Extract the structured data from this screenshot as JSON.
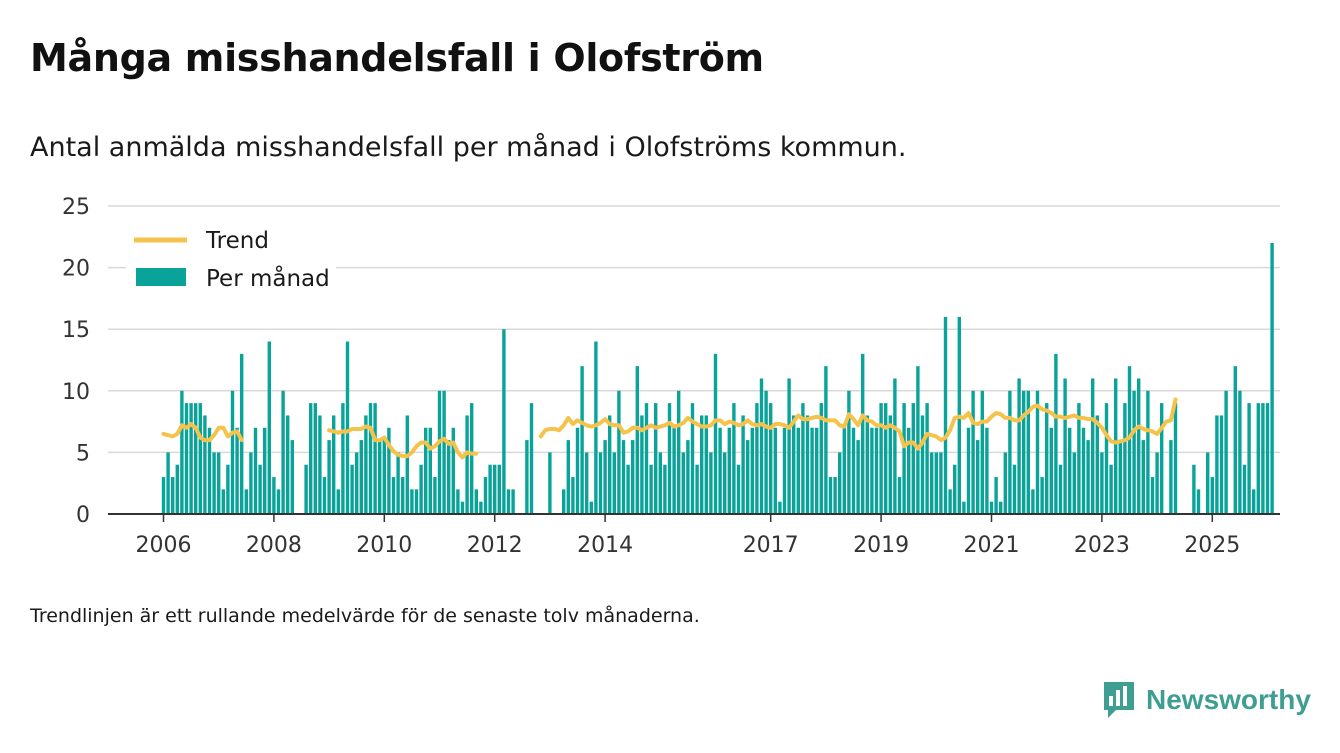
{
  "title": "Många misshandelsfall i Olofström",
  "subtitle": "Antal anmälda misshandelsfall per månad i Olofströms kommun.",
  "footnote": "Trendlinjen är ett rullande medelvärde för de senaste tolv månaderna.",
  "brand": "Newsworthy",
  "colors": {
    "bars": "#0aa39a",
    "trend": "#f5c34b",
    "brand": "#3f9e92"
  },
  "chart_data": {
    "type": "bar",
    "x_start": "2006-01",
    "x_end": "2025-05",
    "ylim": [
      0,
      25
    ],
    "y_ticks": [
      0,
      5,
      10,
      15,
      20,
      25
    ],
    "x_ticks": [
      "2006",
      "2008",
      "2010",
      "2012",
      "2014",
      "2017",
      "2019",
      "2021",
      "2023",
      "2025"
    ],
    "grid": true,
    "legend_position": "top-left",
    "legend": [
      "Trend",
      "Per månad"
    ],
    "series": [
      {
        "name": "Per månad",
        "type": "bar",
        "values": [
          3,
          5,
          3,
          4,
          10,
          9,
          9,
          9,
          9,
          8,
          7,
          5,
          5,
          2,
          4,
          10,
          7,
          13,
          2,
          5,
          7,
          4,
          7,
          14,
          3,
          2,
          10,
          8,
          6,
          0,
          0,
          4,
          9,
          9,
          8,
          3,
          6,
          8,
          2,
          9,
          14,
          4,
          5,
          6,
          8,
          9,
          9,
          6,
          6,
          7,
          3,
          5,
          3,
          8,
          2,
          2,
          4,
          7,
          7,
          3,
          10,
          10,
          6,
          7,
          2,
          1,
          8,
          9,
          2,
          1,
          3,
          4,
          4,
          4,
          15,
          2,
          2,
          0,
          0,
          6,
          9,
          0,
          0,
          0,
          5,
          0,
          0,
          2,
          6,
          3,
          7,
          12,
          5,
          1,
          14,
          5,
          6,
          8,
          5,
          10,
          6,
          4,
          6,
          12,
          8,
          9,
          4,
          9,
          5,
          4,
          9,
          7,
          10,
          5,
          6,
          9,
          4,
          8,
          8,
          5,
          13,
          7,
          5,
          7,
          9,
          4,
          8,
          6,
          7,
          9,
          11,
          10,
          9,
          7,
          1,
          7,
          11,
          8,
          7,
          9,
          8,
          7,
          7,
          9,
          12,
          3,
          3,
          5,
          7,
          10,
          7,
          6,
          13,
          8,
          7,
          7,
          9,
          9,
          8,
          11,
          3,
          9,
          7,
          9,
          12,
          8,
          9,
          5,
          5,
          5,
          16,
          2,
          4,
          16,
          1,
          7,
          10,
          6,
          10,
          7,
          1,
          3,
          1,
          5,
          10,
          4,
          11,
          10,
          10,
          2,
          10,
          3,
          9,
          7,
          13,
          4,
          11,
          7,
          5,
          9,
          7,
          6,
          11,
          8,
          5,
          9,
          4,
          11,
          6,
          9,
          12,
          10,
          11,
          6,
          10,
          3,
          5,
          9,
          0,
          6,
          9,
          0,
          0,
          0,
          4,
          2,
          0,
          5,
          3,
          8,
          8,
          10,
          0,
          12,
          10,
          4,
          9,
          2,
          9,
          9,
          9,
          22
        ]
      },
      {
        "name": "Trend",
        "type": "line",
        "note_start_index": 12,
        "values": [
          6.5,
          6.4,
          6.3,
          6.5,
          7.2,
          7.0,
          7.3,
          7.0,
          6.2,
          6.0,
          6.0,
          6.4,
          7.0,
          7.0,
          6.3,
          6.6,
          6.7,
          6.0,
          null,
          null,
          null,
          null,
          null,
          null,
          null,
          null,
          null,
          null,
          null,
          null,
          null,
          null,
          null,
          null,
          null,
          null,
          6.8,
          6.7,
          6.6,
          6.7,
          6.7,
          6.9,
          6.9,
          6.9,
          7.1,
          7.0,
          6.0,
          6.0,
          6.2,
          5.6,
          5.1,
          4.8,
          4.7,
          4.7,
          5.0,
          5.5,
          5.8,
          5.8,
          5.3,
          5.5,
          5.9,
          6.1,
          5.7,
          5.8,
          5.0,
          4.6,
          5.0,
          4.9,
          4.9,
          null,
          null,
          null,
          null,
          null,
          null,
          null,
          null,
          null,
          null,
          null,
          null,
          null,
          6.3,
          6.8,
          6.9,
          6.9,
          6.8,
          7.2,
          7.8,
          7.3,
          7.6,
          7.4,
          7.2,
          7.1,
          7.2,
          7.4,
          7.7,
          7.3,
          7.2,
          7.2,
          6.6,
          6.7,
          7.0,
          7.0,
          6.8,
          7.0,
          7.2,
          7.0,
          7.1,
          7.2,
          7.4,
          7.1,
          7.2,
          7.4,
          7.8,
          7.5,
          7.3,
          7.1,
          7.1,
          7.2,
          7.6,
          7.6,
          7.3,
          7.5,
          7.4,
          7.2,
          7.3,
          7.6,
          7.3,
          7.2,
          7.3,
          7.1,
          7.0,
          7.3,
          7.3,
          7.2,
          7.0,
          7.5,
          8.0,
          7.7,
          7.7,
          7.8,
          7.9,
          7.8,
          7.6,
          7.6,
          7.6,
          7.2,
          7.1,
          8.1,
          7.7,
          7.2,
          8.0,
          7.6,
          7.5,
          7.2,
          7.2,
          7.0,
          7.2,
          7.0,
          6.7,
          5.5,
          5.8,
          5.8,
          5.3,
          5.8,
          6.5,
          6.4,
          6.3,
          6.0,
          6.2,
          6.8,
          7.8,
          7.9,
          7.8,
          8.2,
          7.4,
          7.3,
          7.5,
          7.5,
          7.9,
          8.2,
          8.1,
          7.8,
          7.8,
          7.6,
          7.6,
          8.0,
          8.3,
          8.7,
          8.8,
          8.5,
          8.4,
          8.2,
          7.9,
          7.9,
          7.8,
          7.9,
          8.0,
          7.8,
          7.8,
          7.7,
          7.7,
          7.4,
          7.0,
          6.4,
          5.9,
          5.8,
          5.9,
          6.0,
          6.2,
          6.8,
          7.1,
          6.9,
          6.8,
          6.7,
          6.5,
          7.0,
          7.5,
          7.6,
          9.3,
          null,
          null,
          null,
          null,
          null,
          null,
          null,
          null,
          null,
          null,
          null,
          null,
          null,
          null,
          null,
          null,
          null,
          null,
          null,
          null,
          null
        ]
      }
    ]
  }
}
